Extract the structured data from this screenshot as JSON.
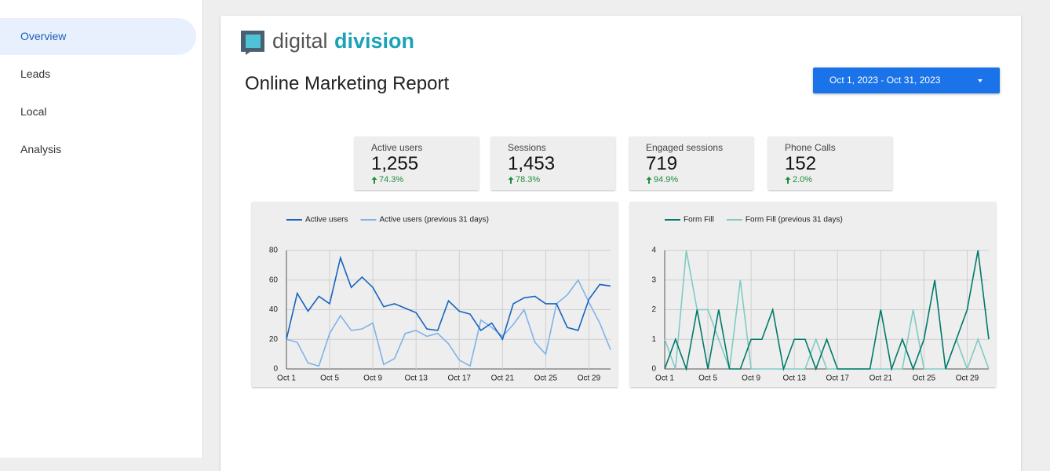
{
  "nav": [
    "Overview",
    "Leads",
    "Local",
    "Analysis"
  ],
  "logo": {
    "part1": "digital",
    "part2": "division"
  },
  "title": "Online Marketing Report",
  "date_range": "Oct 1, 2023 - Oct 31, 2023",
  "kpis": [
    {
      "label": "Active users",
      "value": "1,255",
      "change": "74.3%"
    },
    {
      "label": "Sessions",
      "value": "1,453",
      "change": "78.3%"
    },
    {
      "label": "Engaged sessions",
      "value": "719",
      "change": "94.9%"
    },
    {
      "label": "Phone Calls",
      "value": "152",
      "change": "2.0%"
    }
  ],
  "chart_data": [
    {
      "type": "line",
      "categories": [
        "Oct 1",
        null,
        null,
        null,
        "Oct 5",
        null,
        null,
        null,
        "Oct 9",
        null,
        null,
        null,
        "Oct 13",
        null,
        null,
        null,
        "Oct 17",
        null,
        null,
        null,
        "Oct 21",
        null,
        null,
        null,
        "Oct 25",
        null,
        null,
        null,
        "Oct 29",
        null,
        null
      ],
      "series": [
        {
          "name": "Active users",
          "color": "#1565c0",
          "values": [
            20,
            51,
            39,
            49,
            44,
            75,
            55,
            62,
            55,
            42,
            44,
            41,
            38,
            27,
            26,
            46,
            39,
            37,
            26,
            31,
            20,
            44,
            48,
            49,
            44,
            44,
            28,
            26,
            47,
            57,
            56
          ]
        },
        {
          "name": "Active users (previous 31 days)",
          "color": "#7fb3ea",
          "values": [
            20,
            18,
            4,
            2,
            24,
            36,
            26,
            27,
            31,
            3,
            7,
            24,
            26,
            22,
            24,
            17,
            6,
            2,
            33,
            28,
            22,
            30,
            40,
            18,
            10,
            44,
            50,
            60,
            45,
            31,
            13
          ]
        }
      ],
      "ylim": [
        0,
        80
      ],
      "yticks": [
        0,
        20,
        40,
        60,
        80
      ],
      "grid": true
    },
    {
      "type": "line",
      "categories": [
        "Oct 1",
        null,
        null,
        null,
        "Oct 5",
        null,
        null,
        null,
        "Oct 9",
        null,
        null,
        null,
        "Oct 13",
        null,
        null,
        null,
        "Oct 17",
        null,
        null,
        null,
        "Oct 21",
        null,
        null,
        null,
        "Oct 25",
        null,
        null,
        null,
        "Oct 29",
        null,
        null
      ],
      "series": [
        {
          "name": "Form Fill",
          "color": "#00796b",
          "values": [
            0,
            1,
            0,
            2,
            0,
            2,
            0,
            0,
            1,
            1,
            2,
            0,
            1,
            1,
            0,
            1,
            0,
            0,
            0,
            0,
            2,
            0,
            1,
            0,
            1,
            3,
            0,
            1,
            2,
            4,
            1
          ]
        },
        {
          "name": "Form Fill (previous 31 days)",
          "color": "#80cbc4",
          "values": [
            1,
            0,
            4,
            2,
            2,
            1,
            0,
            3,
            0,
            0,
            0,
            0,
            0,
            0,
            1,
            0,
            0,
            0,
            0,
            0,
            0,
            0,
            0,
            2,
            0,
            0,
            0,
            1,
            0,
            1,
            0
          ]
        }
      ],
      "ylim": [
        0,
        4
      ],
      "yticks": [
        0,
        1,
        2,
        3,
        4
      ],
      "grid": true
    }
  ]
}
